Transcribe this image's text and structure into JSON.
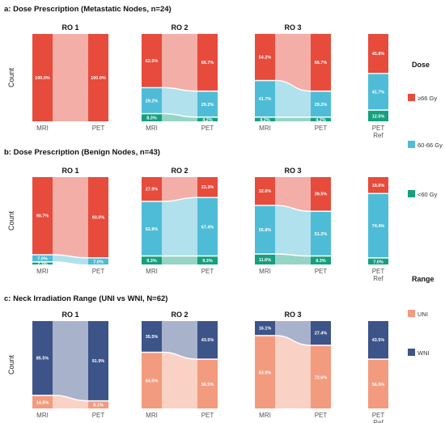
{
  "colors": {
    "high": "#e64b3c",
    "mid": "#4ebcd6",
    "low": "#16a07f",
    "uni": "#f39b7f",
    "wni": "#3c5488"
  },
  "legends": [
    {
      "title": "Dose",
      "entries": [
        {
          "key": "high",
          "label": "≥66 Gy"
        },
        {
          "key": "mid",
          "label": "60-66 Gy"
        },
        {
          "key": "low",
          "label": "<60 Gy"
        }
      ]
    },
    {
      "title": "Range",
      "entries": [
        {
          "key": "uni",
          "label": "UNI"
        },
        {
          "key": "wni",
          "label": "WNI"
        }
      ]
    }
  ],
  "chart_data": [
    {
      "type": "alluvial",
      "title": "a: Dose Prescription (Metastatic Nodes, n=24)",
      "ylabel": "Count",
      "legend": "Dose",
      "panels": [
        {
          "title": "RO 1",
          "columns": [
            {
              "label": "MRI",
              "segments": [
                {
                  "key": "high",
                  "value": 100.0,
                  "label": "100.0%"
                }
              ]
            },
            {
              "label": "PET",
              "segments": [
                {
                  "key": "high",
                  "value": 100.0,
                  "label": "100.0%"
                }
              ]
            }
          ]
        },
        {
          "title": "RO 2",
          "columns": [
            {
              "label": "MRI",
              "segments": [
                {
                  "key": "low",
                  "value": 8.3,
                  "label": "8.3%"
                },
                {
                  "key": "mid",
                  "value": 29.2,
                  "label": "29.2%"
                },
                {
                  "key": "high",
                  "value": 62.5,
                  "label": "62.5%"
                }
              ]
            },
            {
              "label": "PET",
              "segments": [
                {
                  "key": "low",
                  "value": 4.2,
                  "label": "4.2%"
                },
                {
                  "key": "mid",
                  "value": 29.2,
                  "label": "29.2%"
                },
                {
                  "key": "high",
                  "value": 66.7,
                  "label": "66.7%"
                }
              ]
            }
          ]
        },
        {
          "title": "RO 3",
          "columns": [
            {
              "label": "MRI",
              "segments": [
                {
                  "key": "low",
                  "value": 4.2,
                  "label": "4.2%"
                },
                {
                  "key": "mid",
                  "value": 41.7,
                  "label": "41.7%"
                },
                {
                  "key": "high",
                  "value": 54.2,
                  "label": "54.2%"
                }
              ]
            },
            {
              "label": "PET",
              "segments": [
                {
                  "key": "low",
                  "value": 4.2,
                  "label": "4.2%"
                },
                {
                  "key": "mid",
                  "value": 29.2,
                  "label": "29.2%"
                },
                {
                  "key": "high",
                  "value": 66.7,
                  "label": "66.7%"
                }
              ]
            }
          ]
        },
        {
          "title": "",
          "columns": [
            {
              "label": "PET\nRef",
              "segments": [
                {
                  "key": "low",
                  "value": 12.5,
                  "label": "12.5%"
                },
                {
                  "key": "mid",
                  "value": 41.7,
                  "label": "41.7%"
                },
                {
                  "key": "high",
                  "value": 45.8,
                  "label": "45.8%"
                }
              ]
            }
          ]
        }
      ]
    },
    {
      "type": "alluvial",
      "title": "b: Dose Prescription (Benign Nodes, n=43)",
      "ylabel": "Count",
      "legend": "Dose",
      "panels": [
        {
          "title": "RO 1",
          "columns": [
            {
              "label": "MRI",
              "segments": [
                {
                  "key": "low",
                  "value": 2.3,
                  "label": "2.3%"
                },
                {
                  "key": "mid",
                  "value": 7.0,
                  "label": "7.0%"
                },
                {
                  "key": "high",
                  "value": 90.7,
                  "label": "90.7%"
                }
              ]
            },
            {
              "label": "PET",
              "segments": [
                {
                  "key": "mid",
                  "value": 7.0,
                  "label": "7.0%"
                },
                {
                  "key": "high",
                  "value": 93.0,
                  "label": "93.0%"
                }
              ]
            }
          ]
        },
        {
          "title": "RO 2",
          "columns": [
            {
              "label": "MRI",
              "segments": [
                {
                  "key": "low",
                  "value": 9.3,
                  "label": "9.3%"
                },
                {
                  "key": "mid",
                  "value": 62.8,
                  "label": "62.8%"
                },
                {
                  "key": "high",
                  "value": 27.9,
                  "label": "27.9%"
                }
              ]
            },
            {
              "label": "PET",
              "segments": [
                {
                  "key": "low",
                  "value": 9.3,
                  "label": "9.3%"
                },
                {
                  "key": "mid",
                  "value": 67.4,
                  "label": "67.4%"
                },
                {
                  "key": "high",
                  "value": 23.3,
                  "label": "23.3%"
                }
              ]
            }
          ]
        },
        {
          "title": "RO 3",
          "columns": [
            {
              "label": "MRI",
              "segments": [
                {
                  "key": "low",
                  "value": 11.6,
                  "label": "11.6%"
                },
                {
                  "key": "mid",
                  "value": 55.8,
                  "label": "55.8%"
                },
                {
                  "key": "high",
                  "value": 32.6,
                  "label": "32.6%"
                }
              ]
            },
            {
              "label": "PET",
              "segments": [
                {
                  "key": "low",
                  "value": 9.3,
                  "label": "9.3%"
                },
                {
                  "key": "mid",
                  "value": 51.2,
                  "label": "51.2%"
                },
                {
                  "key": "high",
                  "value": 39.5,
                  "label": "39.5%"
                }
              ]
            }
          ]
        },
        {
          "title": "",
          "columns": [
            {
              "label": "PET\nRef",
              "segments": [
                {
                  "key": "low",
                  "value": 7.0,
                  "label": "7.0%"
                },
                {
                  "key": "mid",
                  "value": 74.4,
                  "label": "74.4%"
                },
                {
                  "key": "high",
                  "value": 18.6,
                  "label": "18.6%"
                }
              ]
            }
          ]
        }
      ]
    },
    {
      "type": "alluvial",
      "title": "c: Neck Irradiation Range (UNI vs WNI, N=62)",
      "ylabel": "Count",
      "legend": "Range",
      "panels": [
        {
          "title": "RO 1",
          "columns": [
            {
              "label": "MRI",
              "segments": [
                {
                  "key": "uni",
                  "value": 14.5,
                  "label": "14.5%"
                },
                {
                  "key": "wni",
                  "value": 85.5,
                  "label": "85.5%"
                }
              ]
            },
            {
              "label": "PET",
              "segments": [
                {
                  "key": "uni",
                  "value": 8.1,
                  "label": "8.1%"
                },
                {
                  "key": "wni",
                  "value": 91.9,
                  "label": "91.9%"
                }
              ]
            }
          ]
        },
        {
          "title": "RO 2",
          "columns": [
            {
              "label": "MRI",
              "segments": [
                {
                  "key": "uni",
                  "value": 64.5,
                  "label": "64.5%"
                },
                {
                  "key": "wni",
                  "value": 35.5,
                  "label": "35.5%"
                }
              ]
            },
            {
              "label": "PET",
              "segments": [
                {
                  "key": "uni",
                  "value": 56.5,
                  "label": "56.5%"
                },
                {
                  "key": "wni",
                  "value": 43.5,
                  "label": "43.5%"
                }
              ]
            }
          ]
        },
        {
          "title": "RO 3",
          "columns": [
            {
              "label": "MRI",
              "segments": [
                {
                  "key": "uni",
                  "value": 83.9,
                  "label": "83.9%"
                },
                {
                  "key": "wni",
                  "value": 16.1,
                  "label": "16.1%"
                }
              ]
            },
            {
              "label": "PET",
              "segments": [
                {
                  "key": "uni",
                  "value": 72.6,
                  "label": "72.6%"
                },
                {
                  "key": "wni",
                  "value": 27.4,
                  "label": "27.4%"
                }
              ]
            }
          ]
        },
        {
          "title": "",
          "columns": [
            {
              "label": "PET\nRef",
              "segments": [
                {
                  "key": "uni",
                  "value": 56.5,
                  "label": "56.5%"
                },
                {
                  "key": "wni",
                  "value": 43.5,
                  "label": "43.5%"
                }
              ]
            }
          ]
        }
      ]
    }
  ]
}
